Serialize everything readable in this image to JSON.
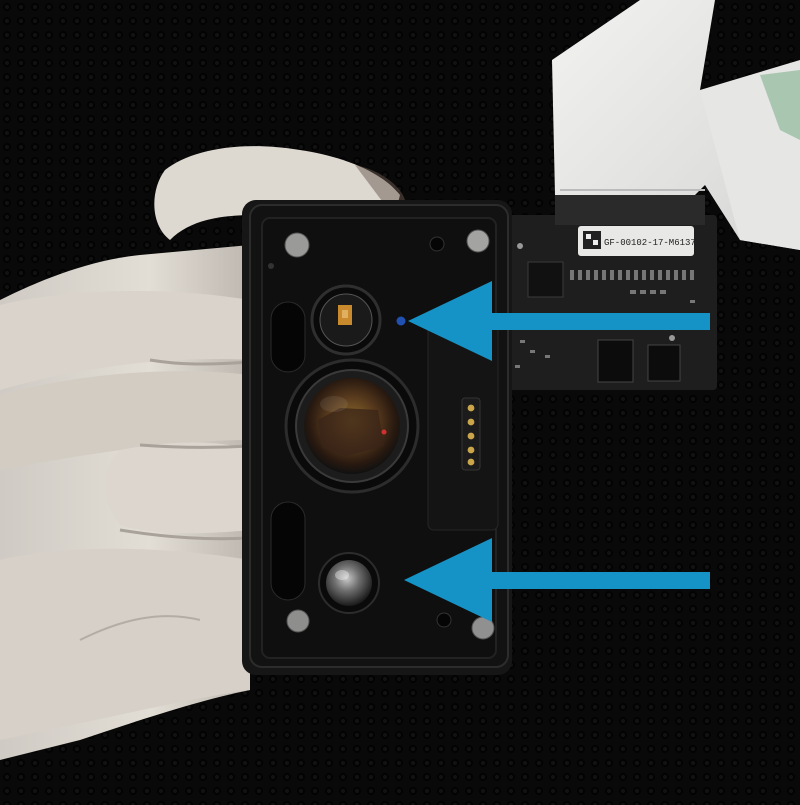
{
  "photo": {
    "subject": "camera module held in hand",
    "pcb_label": "GF-00102-17-M6137",
    "arrow_color": "#1593c6",
    "background_color": "#0d0d0d",
    "arrows": [
      {
        "name": "arrow-to-upper-sensor"
      },
      {
        "name": "arrow-to-lower-lens"
      }
    ]
  }
}
